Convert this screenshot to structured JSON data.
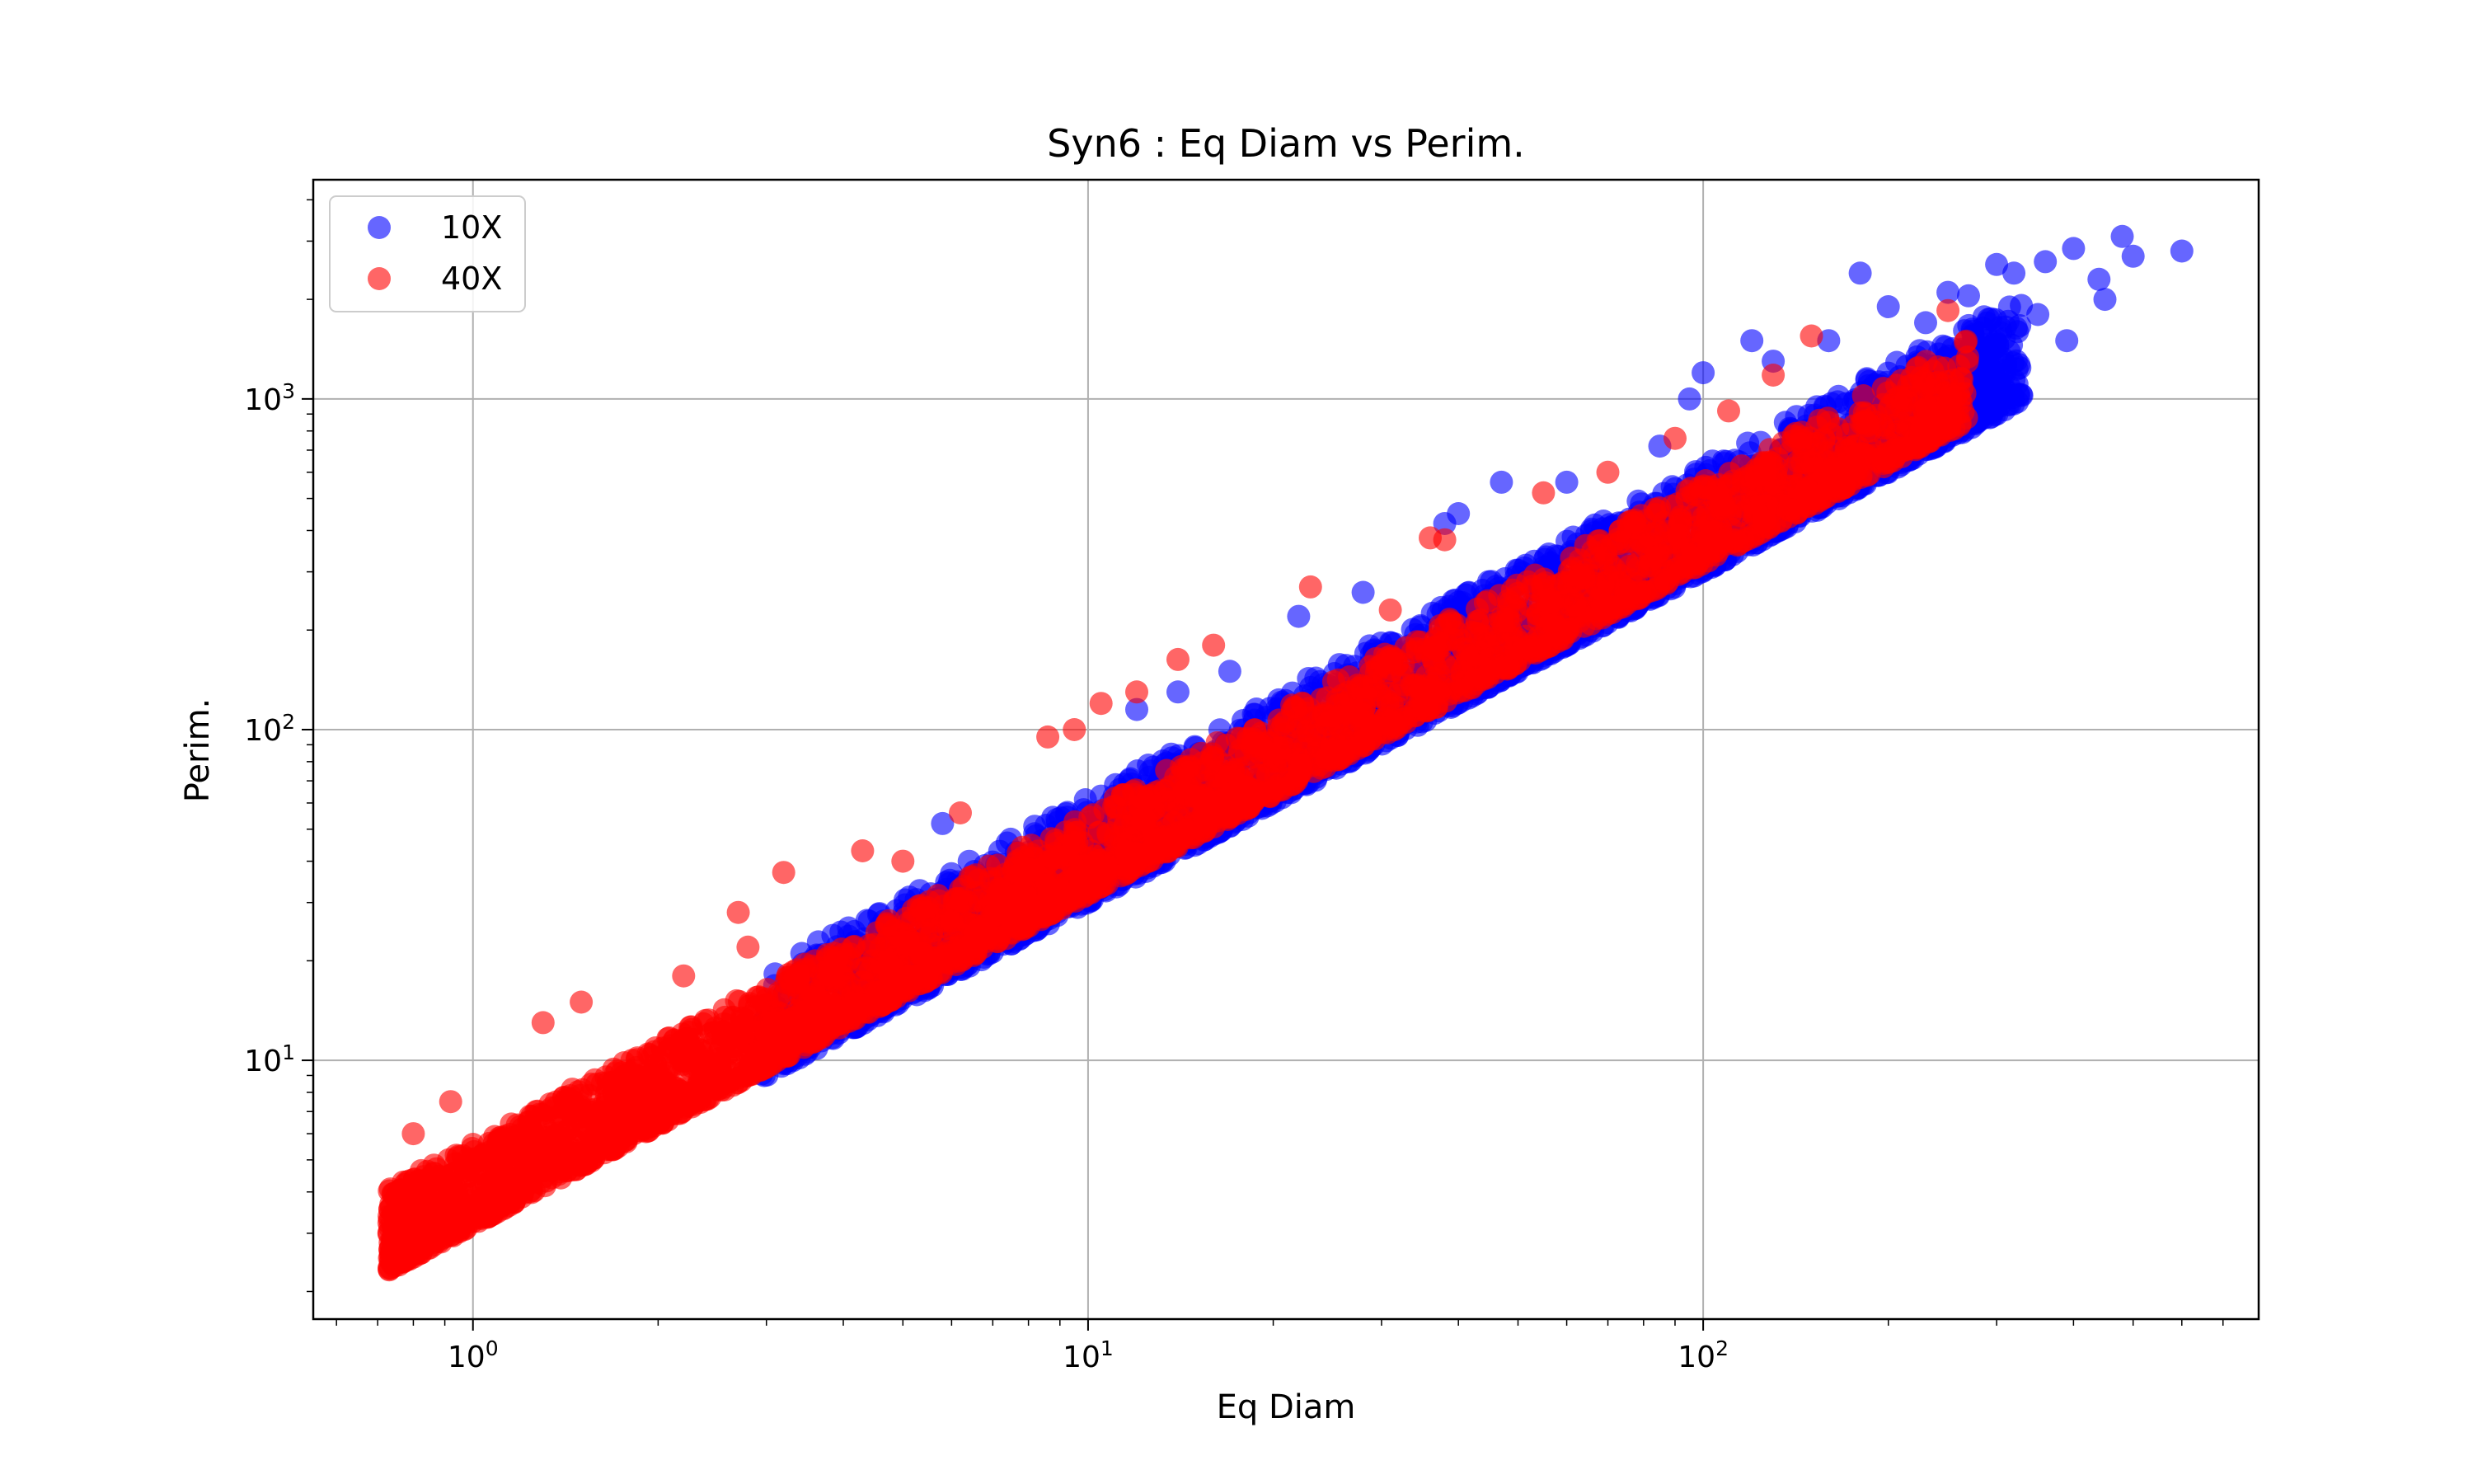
{
  "chart_data": {
    "type": "scatter",
    "title": "Syn6 : Eq Diam vs Perim.",
    "xlabel": "Eq Diam",
    "ylabel": "Perim.",
    "xscale": "log",
    "yscale": "log",
    "xlim": [
      0.55,
      800
    ],
    "ylim": [
      1.65,
      4600
    ],
    "grid": true,
    "legend_position": "top-left",
    "x_ticks": [
      {
        "base": "10",
        "exp": "0",
        "value": 1
      },
      {
        "base": "10",
        "exp": "1",
        "value": 10
      },
      {
        "base": "10",
        "exp": "2",
        "value": 100
      }
    ],
    "y_ticks": [
      {
        "base": "10",
        "exp": "1",
        "value": 10
      },
      {
        "base": "10",
        "exp": "2",
        "value": 100
      },
      {
        "base": "10",
        "exp": "3",
        "value": 1000
      }
    ],
    "series": [
      {
        "name": "10X",
        "color": "#0000ff",
        "alpha": 0.6,
        "trend": {
          "x_min": 2.9,
          "x_max": 330,
          "y_at_x1": 3.14,
          "slope": 1.0,
          "spread_low": 0.02,
          "spread_high": 0.3
        },
        "outliers": [
          [
            600,
            2800
          ],
          [
            480,
            3100
          ],
          [
            500,
            2700
          ],
          [
            400,
            2850
          ],
          [
            360,
            2600
          ],
          [
            300,
            2550
          ],
          [
            320,
            2400
          ],
          [
            440,
            2300
          ],
          [
            250,
            2100
          ],
          [
            180,
            2400
          ],
          [
            120,
            1500
          ],
          [
            100,
            1200
          ],
          [
            95,
            1000
          ],
          [
            85,
            720
          ],
          [
            60,
            560
          ],
          [
            47,
            560
          ],
          [
            40,
            450
          ],
          [
            38,
            420
          ],
          [
            28,
            260
          ],
          [
            22,
            220
          ],
          [
            17,
            150
          ],
          [
            14,
            130
          ],
          [
            5.8,
            52
          ],
          [
            12,
            115
          ],
          [
            350,
            1800
          ],
          [
            450,
            2000
          ],
          [
            390,
            1500
          ],
          [
            270,
            2050
          ],
          [
            200,
            1900
          ],
          [
            160,
            1500
          ],
          [
            130,
            1300
          ],
          [
            230,
            1700
          ],
          [
            310,
            1650
          ]
        ]
      },
      {
        "name": "40X",
        "color": "#ff0000",
        "alpha": 0.6,
        "trend": {
          "x_min": 0.73,
          "x_max": 270,
          "y_at_x1": 3.4,
          "slope": 1.0,
          "spread_low": 0.03,
          "spread_high": 0.22
        },
        "outliers": [
          [
            1.3,
            13
          ],
          [
            2.7,
            28
          ],
          [
            2.8,
            22
          ],
          [
            2.2,
            18
          ],
          [
            3.2,
            37
          ],
          [
            4.3,
            43
          ],
          [
            6.2,
            56
          ],
          [
            9.5,
            100
          ],
          [
            10.5,
            120
          ],
          [
            8.6,
            95
          ],
          [
            14,
            163
          ],
          [
            16,
            180
          ],
          [
            23,
            270
          ],
          [
            31,
            230
          ],
          [
            36,
            380
          ],
          [
            38,
            375
          ],
          [
            55,
            520
          ],
          [
            110,
            920
          ],
          [
            130,
            1180
          ],
          [
            150,
            1550
          ],
          [
            250,
            1850
          ],
          [
            0.92,
            7.5
          ],
          [
            0.8,
            6.0
          ],
          [
            1.5,
            15
          ],
          [
            5.0,
            40
          ],
          [
            12,
            130
          ],
          [
            70,
            600
          ],
          [
            90,
            760
          ]
        ]
      }
    ]
  }
}
